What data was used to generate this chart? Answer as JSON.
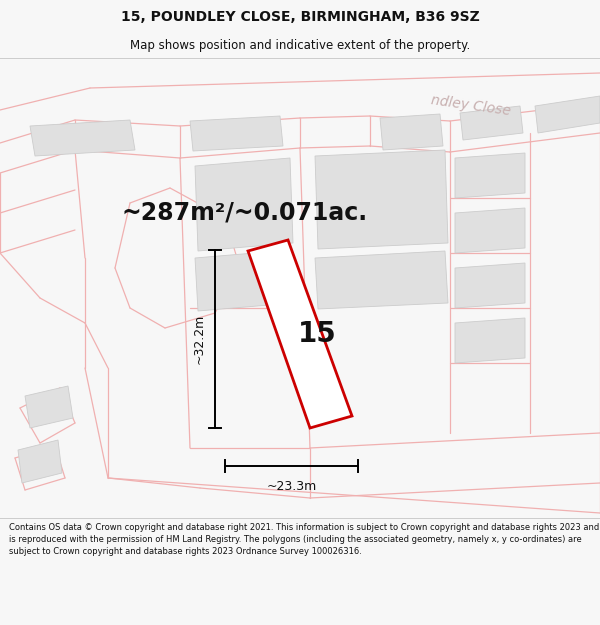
{
  "title_line1": "15, POUNDLEY CLOSE, BIRMINGHAM, B36 9SZ",
  "title_line2": "Map shows position and indicative extent of the property.",
  "area_text": "~287m²/~0.071ac.",
  "plot_number": "15",
  "dim_vertical": "~32.2m",
  "dim_horizontal": "~23.3m",
  "street_label": "ndley Close",
  "footer_text": "Contains OS data © Crown copyright and database right 2021. This information is subject to Crown copyright and database rights 2023 and is reproduced with the permission of HM Land Registry. The polygons (including the associated geometry, namely x, y co-ordinates) are subject to Crown copyright and database rights 2023 Ordnance Survey 100026316.",
  "bg_color": "#f7f7f7",
  "map_bg": "#ffffff",
  "plot_outline_color": "#cc0000",
  "cadastral_color": "#f0b0b0",
  "cadastral_lw": 0.9,
  "building_color": "#e0e0e0",
  "building_edge_color": "#cccccc",
  "text_color": "#111111",
  "street_label_color": "#c8b0b0",
  "title_fontsize": 10,
  "subtitle_fontsize": 8.5,
  "area_fontsize": 17,
  "plot_num_fontsize": 20,
  "dim_fontsize": 9,
  "footer_fontsize": 6.0
}
